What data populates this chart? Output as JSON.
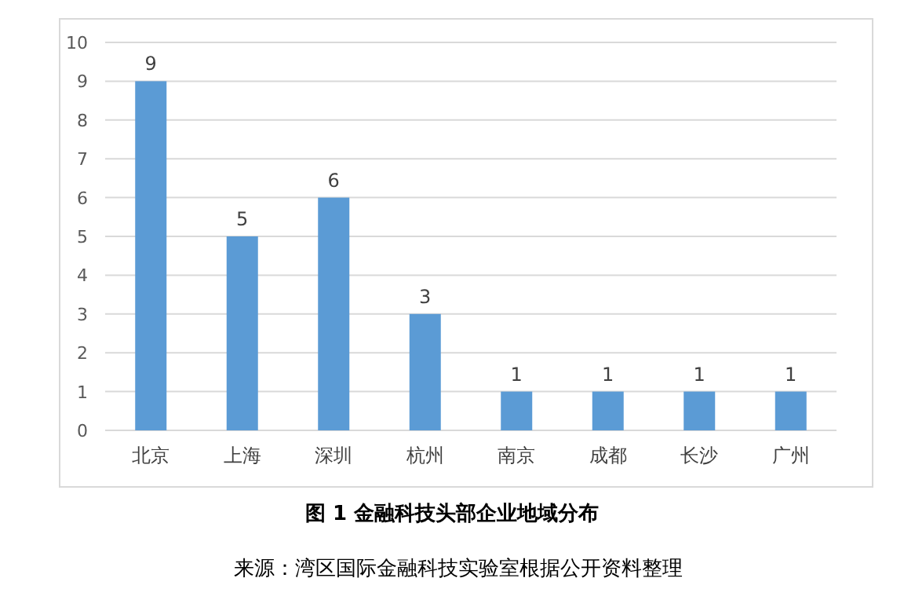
{
  "chart_data": {
    "type": "bar",
    "title": "图 1 金融科技头部企业地域分布",
    "annotations": [
      "来源：湾区国际金融科技实验室根据公开资料整理"
    ],
    "categories": [
      "北京",
      "上海",
      "深圳",
      "杭州",
      "南京",
      "成都",
      "长沙",
      "广州"
    ],
    "values": [
      9,
      5,
      6,
      3,
      1,
      1,
      1,
      1
    ],
    "color": "#5b9bd5",
    "ylim": [
      0,
      10
    ],
    "yticks": [
      0,
      1,
      2,
      3,
      4,
      5,
      6,
      7,
      8,
      9,
      10
    ],
    "grid": "y",
    "data_labels": true
  }
}
